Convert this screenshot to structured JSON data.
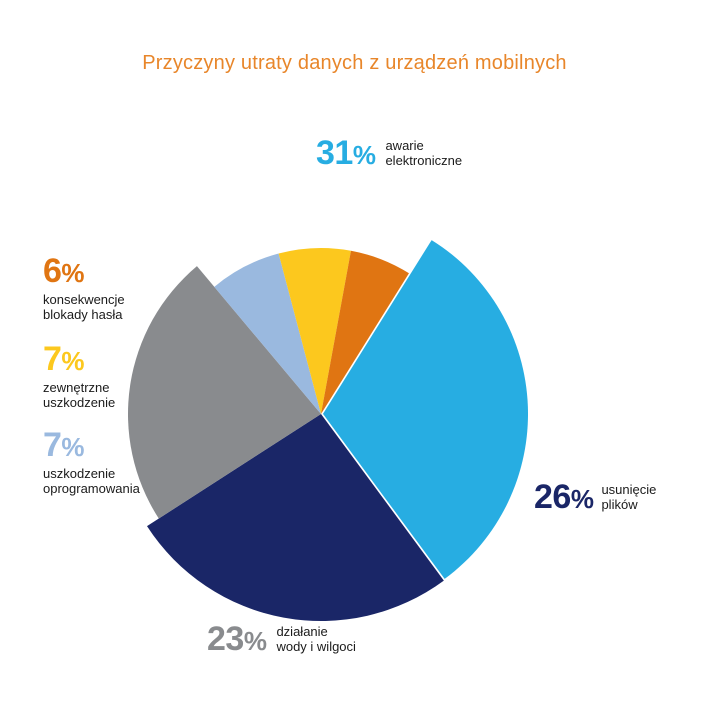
{
  "title": "Przyczyny utraty danych z urządzeń mobilnych",
  "chart_data": {
    "type": "pie",
    "title": "Przyczyny utraty danych z urządzeń mobilnych",
    "slices": [
      {
        "name": "awarie elektroniczne",
        "lines": [
          "awarie",
          "elektroniczne"
        ],
        "value": 31,
        "pct_text": "31",
        "color": "#27ade2",
        "exploded": true
      },
      {
        "name": "usunięcie plików",
        "lines": [
          "usunięcie",
          "plików"
        ],
        "value": 26,
        "pct_text": "26",
        "color": "#1a2667",
        "exploded": false
      },
      {
        "name": "działanie wody i wilgoci",
        "lines": [
          "działanie",
          "wody i wilgoci"
        ],
        "value": 23,
        "pct_text": "23",
        "color": "#898b8e",
        "exploded": false
      },
      {
        "name": "uszkodzenie oprogramowania",
        "lines": [
          "uszkodzenie",
          "oprogramowania"
        ],
        "value": 7,
        "pct_text": "7",
        "color": "#9ab9df",
        "exploded": false
      },
      {
        "name": "zewnętrzne uszkodzenie",
        "lines": [
          "zewnętrzne",
          "uszkodzenie"
        ],
        "value": 7,
        "pct_text": "7",
        "color": "#fcc81e",
        "exploded": false
      },
      {
        "name": "konsekwencje blokady hasła",
        "lines": [
          "konsekwencje",
          "blokady hasła"
        ],
        "value": 6,
        "pct_text": "6",
        "color": "#e07512",
        "exploded": false
      }
    ],
    "percent_symbol": "%"
  }
}
